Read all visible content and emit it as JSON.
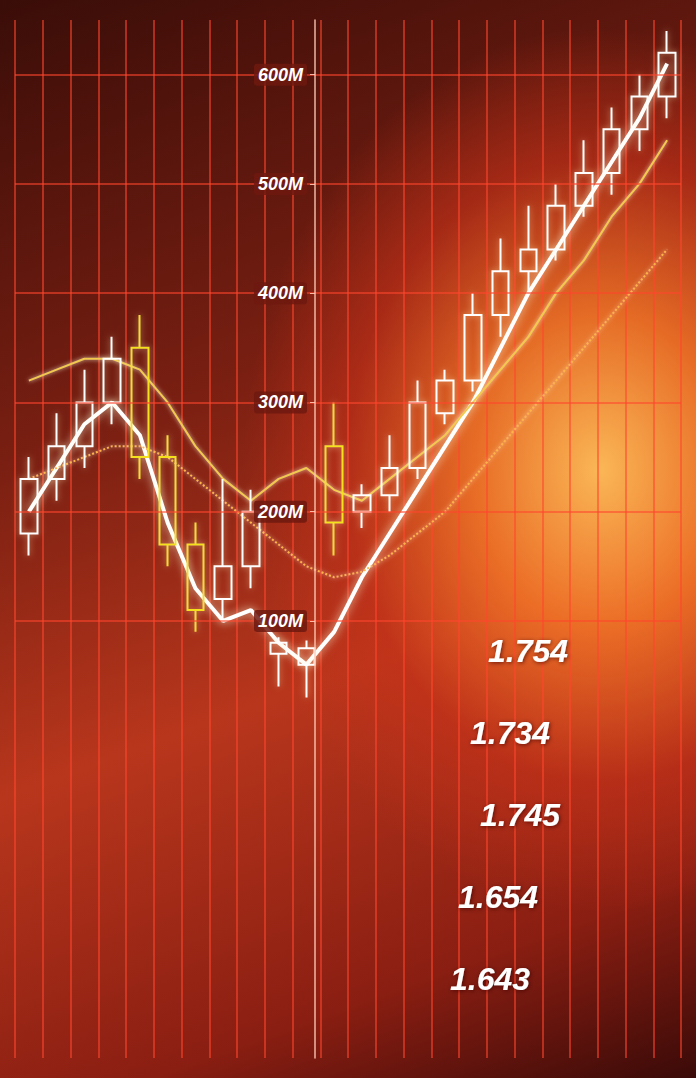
{
  "chart_data": {
    "type": "candlestick",
    "categories": [
      null,
      null,
      null,
      null,
      null,
      null,
      null,
      null,
      null,
      null,
      null,
      null,
      null,
      null,
      null,
      null,
      null,
      null,
      null,
      null,
      null,
      null,
      null,
      null
    ],
    "ylim": [
      -300000000,
      650000000
    ],
    "yticks": [
      {
        "value": 100000000,
        "label": "100M"
      },
      {
        "value": 200000000,
        "label": "200M"
      },
      {
        "value": 300000000,
        "label": "300M"
      },
      {
        "value": 400000000,
        "label": "400M"
      },
      {
        "value": 500000000,
        "label": "500M"
      },
      {
        "value": 600000000,
        "label": "600M"
      }
    ],
    "grid": true,
    "tick_labels": "y",
    "annotations": [
      "1.754",
      "1.734",
      "1.745",
      "1.654",
      "1.643"
    ],
    "series": [
      {
        "type": "candlestick",
        "values": [
          {
            "open": 180000000,
            "close": 230000000,
            "low": 160000000,
            "high": 250000000
          },
          {
            "open": 230000000,
            "close": 260000000,
            "low": 210000000,
            "high": 290000000
          },
          {
            "open": 260000000,
            "close": 300000000,
            "low": 240000000,
            "high": 330000000
          },
          {
            "open": 300000000,
            "close": 340000000,
            "low": 280000000,
            "high": 360000000
          },
          {
            "open": 350000000,
            "close": 250000000,
            "low": 230000000,
            "high": 380000000
          },
          {
            "open": 250000000,
            "close": 170000000,
            "low": 150000000,
            "high": 270000000
          },
          {
            "open": 170000000,
            "close": 110000000,
            "low": 90000000,
            "high": 190000000
          },
          {
            "open": 120000000,
            "close": 150000000,
            "low": 100000000,
            "high": 230000000
          },
          {
            "open": 150000000,
            "close": 200000000,
            "low": 130000000,
            "high": 220000000
          },
          {
            "open": 70000000,
            "close": 80000000,
            "low": 40000000,
            "high": 85000000
          },
          {
            "open": 60000000,
            "close": 75000000,
            "low": 30000000,
            "high": 82000000
          },
          {
            "open": 260000000,
            "close": 190000000,
            "low": 160000000,
            "high": 300000000
          },
          {
            "open": 200000000,
            "close": 215000000,
            "low": 185000000,
            "high": 225000000
          },
          {
            "open": 215000000,
            "close": 240000000,
            "low": 200000000,
            "high": 270000000
          },
          {
            "open": 240000000,
            "close": 300000000,
            "low": 230000000,
            "high": 320000000
          },
          {
            "open": 290000000,
            "close": 320000000,
            "low": 280000000,
            "high": 330000000
          },
          {
            "open": 320000000,
            "close": 380000000,
            "low": 310000000,
            "high": 400000000
          },
          {
            "open": 380000000,
            "close": 420000000,
            "low": 360000000,
            "high": 450000000
          },
          {
            "open": 420000000,
            "close": 440000000,
            "low": 400000000,
            "high": 480000000
          },
          {
            "open": 440000000,
            "close": 480000000,
            "low": 430000000,
            "high": 500000000
          },
          {
            "open": 480000000,
            "close": 510000000,
            "low": 470000000,
            "high": 540000000
          },
          {
            "open": 510000000,
            "close": 550000000,
            "low": 490000000,
            "high": 570000000
          },
          {
            "open": 550000000,
            "close": 580000000,
            "low": 530000000,
            "high": 600000000
          },
          {
            "open": 580000000,
            "close": 620000000,
            "low": 560000000,
            "high": 640000000
          }
        ],
        "colors": [
          "#ffffff",
          "#ffffff",
          "#ffffff",
          "#ffffff",
          "#f5e01e",
          "#f5e01e",
          "#f5e01e",
          "#ffffff",
          "#ffffff",
          "#ffffff",
          "#ffffff",
          "#f5e01e",
          "#ffffff",
          "#ffffff",
          "#ffffff",
          "#ffffff",
          "#ffffff",
          "#ffffff",
          "#ffffff",
          "#ffffff",
          "#ffffff",
          "#ffffff",
          "#ffffff",
          "#ffffff"
        ]
      },
      {
        "type": "line",
        "color": "#ffffff",
        "marker": "none",
        "line_style": "solid",
        "values": [
          200000000,
          240000000,
          280000000,
          300000000,
          270000000,
          190000000,
          130000000,
          100000000,
          110000000,
          80000000,
          60000000,
          90000000,
          140000000,
          180000000,
          220000000,
          260000000,
          300000000,
          350000000,
          400000000,
          440000000,
          480000000,
          520000000,
          560000000,
          610000000
        ]
      },
      {
        "type": "line",
        "color": "#ffb347",
        "marker": "none",
        "line_style": "dotted",
        "values": [
          230000000,
          240000000,
          250000000,
          260000000,
          260000000,
          250000000,
          230000000,
          210000000,
          190000000,
          170000000,
          150000000,
          140000000,
          145000000,
          160000000,
          180000000,
          200000000,
          230000000,
          260000000,
          290000000,
          320000000,
          350000000,
          380000000,
          410000000,
          440000000
        ]
      },
      {
        "type": "line",
        "color": "#f2c94c",
        "marker": "none",
        "line_style": "solid",
        "values": [
          320000000,
          330000000,
          340000000,
          340000000,
          330000000,
          300000000,
          260000000,
          230000000,
          210000000,
          230000000,
          240000000,
          220000000,
          210000000,
          230000000,
          250000000,
          270000000,
          300000000,
          330000000,
          360000000,
          400000000,
          430000000,
          470000000,
          500000000,
          540000000
        ]
      }
    ]
  }
}
